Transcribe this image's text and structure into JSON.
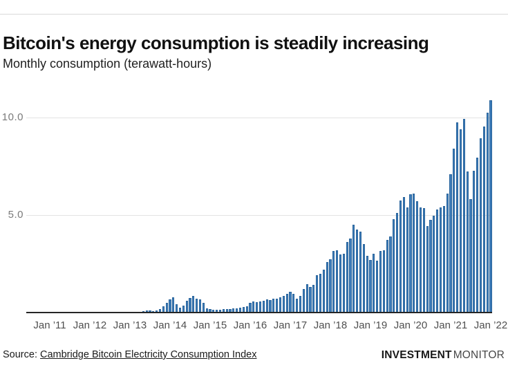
{
  "header": {
    "title": "Bitcoin's energy consumption is steadily increasing",
    "subtitle": "Monthly consumption (terawatt-hours)"
  },
  "footer": {
    "source_prefix": "Source: ",
    "source_link": "Cambridge Bitcoin Electricity Consumption Index",
    "logo_bold": "INVESTMENT",
    "logo_light": "MONITOR"
  },
  "colors": {
    "bar_fill": "#3e7cb9",
    "bar_border": "#245e95",
    "gridline": "#e3e3e3",
    "axis": "#262626",
    "title_text": "#111111",
    "tick_text": "#4f4f4f"
  },
  "chart_data": {
    "type": "bar",
    "title": "Bitcoin's energy consumption is steadily increasing",
    "subtitle": "Monthly consumption (terawatt-hours)",
    "xlabel": "",
    "ylabel": "Monthly consumption (terawatt-hours)",
    "x_tick_labels": [
      "Jan ’11",
      "Jan ’12",
      "Jan ’13",
      "Jan ’14",
      "Jan ’15",
      "Jan ’16",
      "Jan ’17",
      "Jan ’18",
      "Jan ’19",
      "Jan ’20",
      "Jan ’21",
      "Jan ’22"
    ],
    "y_ticks": [
      5.0,
      10.0
    ],
    "y_tick_labels": [
      "5.0",
      "10.0"
    ],
    "ylim": [
      0,
      11.1
    ],
    "grid": "horizontal-only",
    "legend": "none",
    "values_monthly_twh": {
      "2011": [
        0.004,
        0.005,
        0.005,
        0.006,
        0.007,
        0.008,
        0.008,
        0.009,
        0.009,
        0.01,
        0.01,
        0.01
      ],
      "2012": [
        0.01,
        0.01,
        0.02,
        0.02,
        0.02,
        0.02,
        0.02,
        0.02,
        0.03,
        0.03,
        0.03,
        0.03
      ],
      "2013": [
        0.03,
        0.04,
        0.04,
        0.05,
        0.06,
        0.09,
        0.12,
        0.07,
        0.09,
        0.19,
        0.31,
        0.48
      ],
      "2014": [
        0.66,
        0.78,
        0.43,
        0.25,
        0.37,
        0.6,
        0.76,
        0.84,
        0.72,
        0.66,
        0.48,
        0.21
      ],
      "2015": [
        0.17,
        0.15,
        0.14,
        0.15,
        0.16,
        0.17,
        0.19,
        0.2,
        0.22,
        0.25,
        0.28,
        0.32
      ],
      "2016": [
        0.5,
        0.55,
        0.52,
        0.58,
        0.62,
        0.67,
        0.63,
        0.7,
        0.72,
        0.78,
        0.84,
        0.95
      ],
      "2017": [
        1.08,
        0.96,
        0.72,
        0.84,
        1.2,
        1.45,
        1.31,
        1.43,
        1.9,
        2.0,
        2.2,
        2.6
      ],
      "2018": [
        2.73,
        3.14,
        3.2,
        2.97,
        3.03,
        3.62,
        3.79,
        4.5,
        4.27,
        4.15,
        3.5,
        2.9
      ],
      "2019": [
        2.7,
        3.03,
        2.67,
        3.14,
        3.2,
        3.74,
        3.91,
        4.8,
        5.1,
        5.74,
        5.92,
        5.39
      ],
      "2020": [
        6.05,
        6.1,
        5.7,
        5.4,
        5.35,
        4.45,
        4.75,
        4.95,
        5.3,
        5.4,
        5.45,
        6.1
      ],
      "2021": [
        7.1,
        8.4,
        9.76,
        9.4,
        9.94,
        7.22,
        5.8,
        7.28,
        7.93,
        8.94,
        9.53,
        10.24
      ],
      "2022": [
        10.89
      ]
    }
  }
}
